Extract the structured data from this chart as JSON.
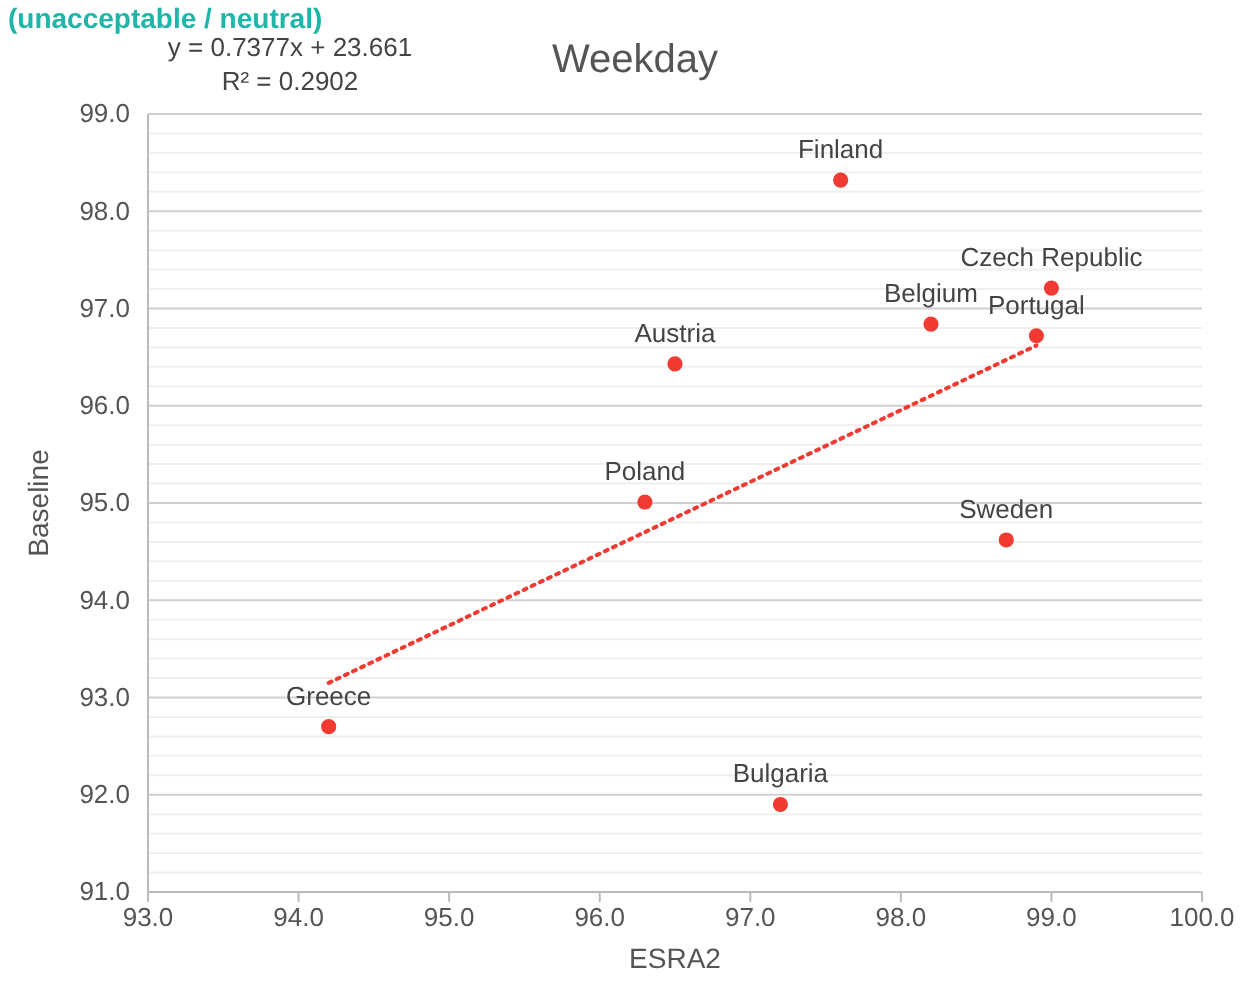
{
  "chart_data": {
    "type": "scatter",
    "title": "Weekday",
    "subtitle": "(unacceptable / neutral)",
    "xlabel": "ESRA2",
    "ylabel": "Baseline",
    "xlim": [
      93,
      100
    ],
    "xticks": [
      {
        "value": 93,
        "label": "93.0"
      },
      {
        "value": 94,
        "label": "94.0"
      },
      {
        "value": 95,
        "label": "95.0"
      },
      {
        "value": 96,
        "label": "96.0"
      },
      {
        "value": 97,
        "label": "97.0"
      },
      {
        "value": 98,
        "label": "98.0"
      },
      {
        "value": 99,
        "label": "99.0"
      },
      {
        "value": 100,
        "label": "100.0"
      }
    ],
    "ylim": [
      91,
      99
    ],
    "yticks": [
      {
        "value": 91,
        "label": "91.0"
      },
      {
        "value": 91.2,
        "label": null
      },
      {
        "value": 91.4,
        "label": null
      },
      {
        "value": 91.6,
        "label": null
      },
      {
        "value": 91.8,
        "label": null
      },
      {
        "value": 92,
        "label": "92.0"
      },
      {
        "value": 92.2,
        "label": null
      },
      {
        "value": 92.4,
        "label": null
      },
      {
        "value": 92.6,
        "label": null
      },
      {
        "value": 92.8,
        "label": null
      },
      {
        "value": 93,
        "label": "93.0"
      },
      {
        "value": 93.2,
        "label": null
      },
      {
        "value": 93.4,
        "label": null
      },
      {
        "value": 93.6,
        "label": null
      },
      {
        "value": 93.8,
        "label": null
      },
      {
        "value": 94,
        "label": "94.0"
      },
      {
        "value": 94.2,
        "label": null
      },
      {
        "value": 94.4,
        "label": null
      },
      {
        "value": 94.6,
        "label": null
      },
      {
        "value": 94.8,
        "label": null
      },
      {
        "value": 95,
        "label": "95.0"
      },
      {
        "value": 95.2,
        "label": null
      },
      {
        "value": 95.4,
        "label": null
      },
      {
        "value": 95.6,
        "label": null
      },
      {
        "value": 95.8,
        "label": null
      },
      {
        "value": 96,
        "label": "96.0"
      },
      {
        "value": 96.2,
        "label": null
      },
      {
        "value": 96.4,
        "label": null
      },
      {
        "value": 96.6,
        "label": null
      },
      {
        "value": 96.8,
        "label": null
      },
      {
        "value": 97,
        "label": "97.0"
      },
      {
        "value": 97.2,
        "label": null
      },
      {
        "value": 97.4,
        "label": null
      },
      {
        "value": 97.6,
        "label": null
      },
      {
        "value": 97.8,
        "label": null
      },
      {
        "value": 98,
        "label": "98.0"
      },
      {
        "value": 98.2,
        "label": null
      },
      {
        "value": 98.4,
        "label": null
      },
      {
        "value": 98.6,
        "label": null
      },
      {
        "value": 98.8,
        "label": null
      },
      {
        "value": 99,
        "label": "99.0"
      }
    ],
    "grid": "y",
    "series": [
      {
        "color": "#f03a32",
        "marker": "circle",
        "x": [
          97.6,
          99.0,
          98.2,
          98.9,
          96.5,
          96.3,
          98.7,
          94.2,
          97.2
        ],
        "values": [
          98.32,
          97.21,
          96.84,
          96.72,
          96.43,
          95.01,
          94.62,
          92.7,
          91.9
        ]
      },
      {
        "type": "line",
        "color": "#f03a32",
        "line_style": "dotted",
        "marker": "none",
        "x": [
          94.2,
          98.9
        ],
        "values": [
          93.15,
          96.62
        ]
      }
    ],
    "annotations": [
      "y = 0.7377x + 23.661",
      "R² = 0.2902",
      {
        "text": "Finland",
        "x": 97.6,
        "y": 98.32
      },
      {
        "text": "Czech Republic",
        "x": 99.0,
        "y": 97.21
      },
      {
        "text": "Belgium",
        "x": 98.2,
        "y": 96.84
      },
      {
        "text": "Portugal",
        "x": 98.9,
        "y": 96.72
      },
      {
        "text": "Austria",
        "x": 96.5,
        "y": 96.43
      },
      {
        "text": "Poland",
        "x": 96.3,
        "y": 95.01
      },
      {
        "text": "Sweden",
        "x": 98.7,
        "y": 94.62
      },
      {
        "text": "Greece",
        "x": 94.2,
        "y": 92.7
      },
      {
        "text": "Bulgaria",
        "x": 97.2,
        "y": 91.9
      }
    ]
  }
}
